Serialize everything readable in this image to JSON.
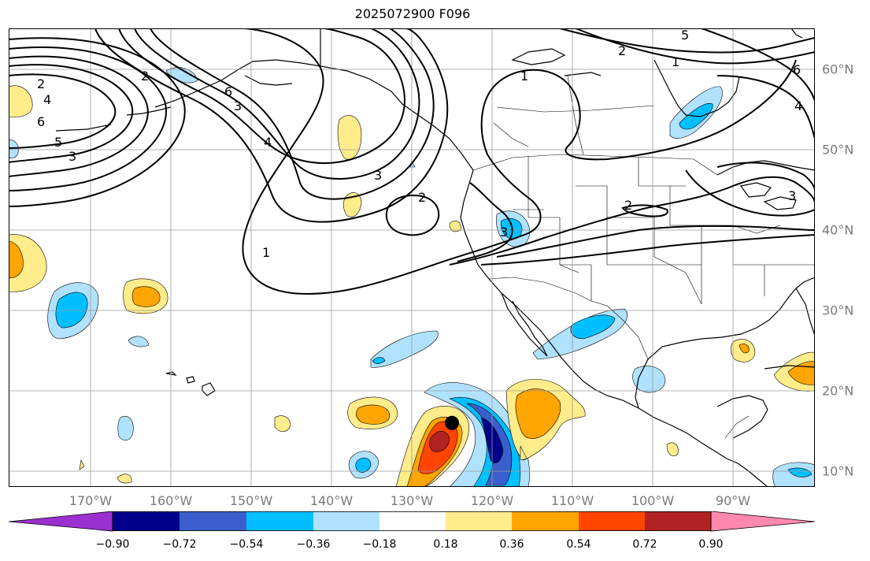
{
  "title": "2025072900 F096",
  "lon_labels": [
    "170°W",
    "160°W",
    "150°W",
    "140°W",
    "130°W",
    "120°W",
    "110°W",
    "100°W",
    "90°W"
  ],
  "lat_labels": [
    "10°N",
    "20°N",
    "30°N",
    "40°N",
    "50°N",
    "60°N"
  ],
  "contour_labels": [
    "1",
    "2",
    "3",
    "4",
    "5",
    "6"
  ],
  "colorbar": {
    "tick_labels": [
      "−0.90",
      "−0.72",
      "−0.54",
      "−0.36",
      "−0.18",
      "0.18",
      "0.36",
      "0.54",
      "0.72",
      "0.90"
    ],
    "colors": [
      "#9b30d0",
      "#00008b",
      "#3a5fcd",
      "#00bfff",
      "#b0e2ff",
      "#ffffff",
      "#ffec8b",
      "#ffa500",
      "#ff4500",
      "#b22222",
      "#ff88b0"
    ]
  },
  "storm_marker": {
    "lon": -125,
    "lat": 16
  }
}
